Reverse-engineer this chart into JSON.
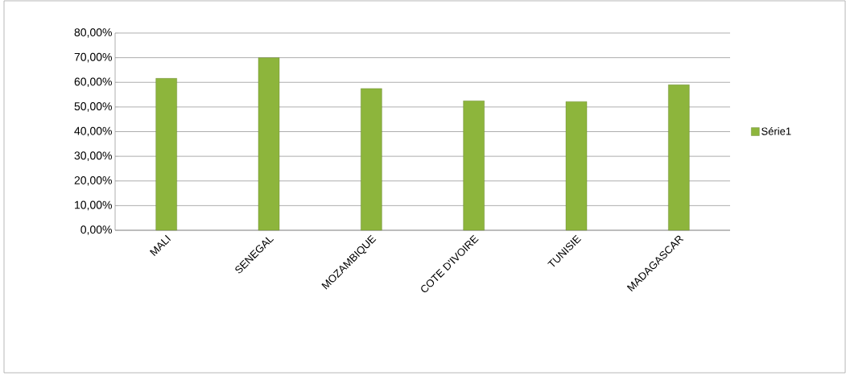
{
  "chart_data": {
    "type": "bar",
    "categories": [
      "MALI",
      "SENEGAL",
      "MOZAMBIQUE",
      "COTE D'IVOIRE",
      "TUNISIE",
      "MADAGASCAR"
    ],
    "series": [
      {
        "name": "Série1",
        "color": "#8db53c",
        "values": [
          61.6,
          70.0,
          57.5,
          52.5,
          52.2,
          59.0
        ]
      }
    ],
    "ylim": [
      0,
      80
    ],
    "yticks": [
      {
        "value": 0,
        "label": "0,00%"
      },
      {
        "value": 10,
        "label": "10,00%"
      },
      {
        "value": 20,
        "label": "20,00%"
      },
      {
        "value": 30,
        "label": "30,00%"
      },
      {
        "value": 40,
        "label": "40,00%"
      },
      {
        "value": 50,
        "label": "50,00%"
      },
      {
        "value": 60,
        "label": "60,00%"
      },
      {
        "value": 70,
        "label": "70,00%"
      },
      {
        "value": 80,
        "label": "80,00%"
      }
    ],
    "grid": "y",
    "legend": "right"
  }
}
